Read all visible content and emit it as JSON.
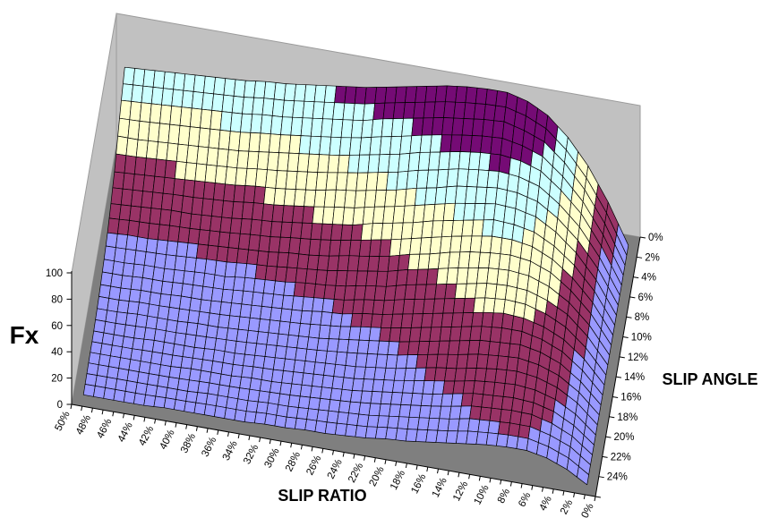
{
  "page": {
    "background": "#FFFFFF"
  },
  "chart_data": {
    "type": "surface",
    "title": "",
    "z_axis": {
      "label": "Fx",
      "min": 0,
      "max": 100,
      "step": 20,
      "tick_labels": [
        "0",
        "20",
        "40",
        "60",
        "80",
        "100"
      ]
    },
    "x_axis": {
      "label": "SLIP RATIO",
      "tick_labels": [
        "50%",
        "48%",
        "46%",
        "44%",
        "42%",
        "40%",
        "38%",
        "36%",
        "34%",
        "32%",
        "30%",
        "28%",
        "26%",
        "24%",
        "22%",
        "20%",
        "18%",
        "16%",
        "14%",
        "12%",
        "10%",
        "8%",
        "6%",
        "4%",
        "2%",
        "0%"
      ]
    },
    "y_axis": {
      "label": "SLIP ANGLE",
      "tick_labels": [
        "0%",
        "2%",
        "4%",
        "6%",
        "8%",
        "10%",
        "12%",
        "14%",
        "16%",
        "18%",
        "20%",
        "22%",
        "24%"
      ]
    },
    "legend": "none",
    "grid": "mesh-on-surface",
    "bands": [
      {
        "range": [
          0,
          20
        ],
        "color": "#9999FF"
      },
      {
        "range": [
          20,
          40
        ],
        "color": "#993366"
      },
      {
        "range": [
          40,
          60
        ],
        "color": "#FFFFCC"
      },
      {
        "range": [
          60,
          80
        ],
        "color": "#CCFFFF"
      },
      {
        "range": [
          80,
          100
        ],
        "color": "#750B75"
      }
    ],
    "wall_color": "#C1C1C1",
    "wall_edge_color": "#9B9B9B",
    "floor_color": "#7F7F7F",
    "mesh_line_color": "#000000",
    "slip_angle_rows": [
      0,
      2,
      4,
      6,
      8,
      10,
      12,
      14,
      16,
      18,
      20,
      22,
      24
    ],
    "slip_ratio_cols": [
      50,
      48,
      46,
      44,
      42,
      40,
      38,
      36,
      34,
      32,
      30,
      28,
      26,
      24,
      22,
      20,
      18,
      16,
      14,
      12,
      10,
      8,
      6,
      4,
      2,
      0
    ],
    "values": [
      [
        68,
        69,
        70,
        71,
        72,
        73,
        74,
        76,
        77,
        79,
        81,
        83,
        85,
        88,
        91,
        94,
        97,
        99,
        100,
        100,
        96,
        88,
        74,
        55,
        30,
        0
      ],
      [
        58,
        59,
        60,
        61,
        62,
        63,
        64,
        66,
        67,
        69,
        71,
        73,
        75,
        79,
        82,
        85,
        88,
        90,
        92,
        93,
        89,
        83,
        70,
        52,
        29,
        0
      ],
      [
        46,
        46,
        47,
        48,
        49,
        50,
        51,
        53,
        55,
        57,
        59,
        61,
        64,
        67,
        70,
        74,
        77,
        80,
        82,
        83,
        81,
        76,
        64,
        49,
        27,
        0
      ],
      [
        34,
        35,
        36,
        37,
        38,
        39,
        40,
        42,
        43,
        45,
        47,
        50,
        52,
        55,
        58,
        62,
        65,
        69,
        71,
        73,
        72,
        68,
        58,
        44,
        25,
        0
      ],
      [
        25,
        26,
        27,
        28,
        28,
        29,
        30,
        32,
        33,
        35,
        37,
        39,
        41,
        45,
        48,
        51,
        55,
        58,
        61,
        64,
        63,
        60,
        52,
        40,
        23,
        0
      ],
      [
        18,
        19,
        19,
        20,
        21,
        22,
        23,
        24,
        25,
        27,
        28,
        30,
        33,
        35,
        38,
        42,
        45,
        49,
        52,
        54,
        55,
        53,
        47,
        36,
        21,
        0
      ],
      [
        13,
        13,
        14,
        14,
        15,
        16,
        16,
        18,
        19,
        20,
        22,
        23,
        25,
        28,
        30,
        34,
        37,
        40,
        43,
        46,
        47,
        46,
        41,
        33,
        19,
        0
      ],
      [
        9,
        9,
        10,
        10,
        11,
        11,
        12,
        13,
        14,
        15,
        16,
        18,
        19,
        22,
        24,
        27,
        30,
        33,
        36,
        39,
        41,
        40,
        36,
        29,
        17,
        0
      ],
      [
        6,
        6,
        7,
        7,
        7,
        8,
        8,
        9,
        10,
        11,
        12,
        13,
        15,
        17,
        19,
        21,
        24,
        27,
        30,
        33,
        34,
        35,
        32,
        26,
        15,
        0
      ],
      [
        4,
        4,
        4,
        5,
        5,
        5,
        6,
        6,
        7,
        8,
        9,
        10,
        11,
        12,
        14,
        16,
        19,
        22,
        24,
        27,
        29,
        30,
        28,
        23,
        14,
        0
      ],
      [
        3,
        3,
        3,
        3,
        3,
        4,
        4,
        4,
        5,
        5,
        6,
        7,
        8,
        9,
        11,
        13,
        15,
        17,
        20,
        23,
        24,
        25,
        24,
        20,
        12,
        0
      ],
      [
        2,
        2,
        2,
        2,
        2,
        2,
        3,
        3,
        3,
        4,
        4,
        5,
        6,
        7,
        8,
        10,
        12,
        14,
        16,
        19,
        20,
        21,
        21,
        17,
        11,
        0
      ],
      [
        1,
        1,
        1,
        1,
        2,
        2,
        2,
        2,
        2,
        3,
        3,
        4,
        4,
        5,
        6,
        8,
        9,
        11,
        13,
        15,
        17,
        18,
        18,
        15,
        9,
        0
      ]
    ]
  }
}
